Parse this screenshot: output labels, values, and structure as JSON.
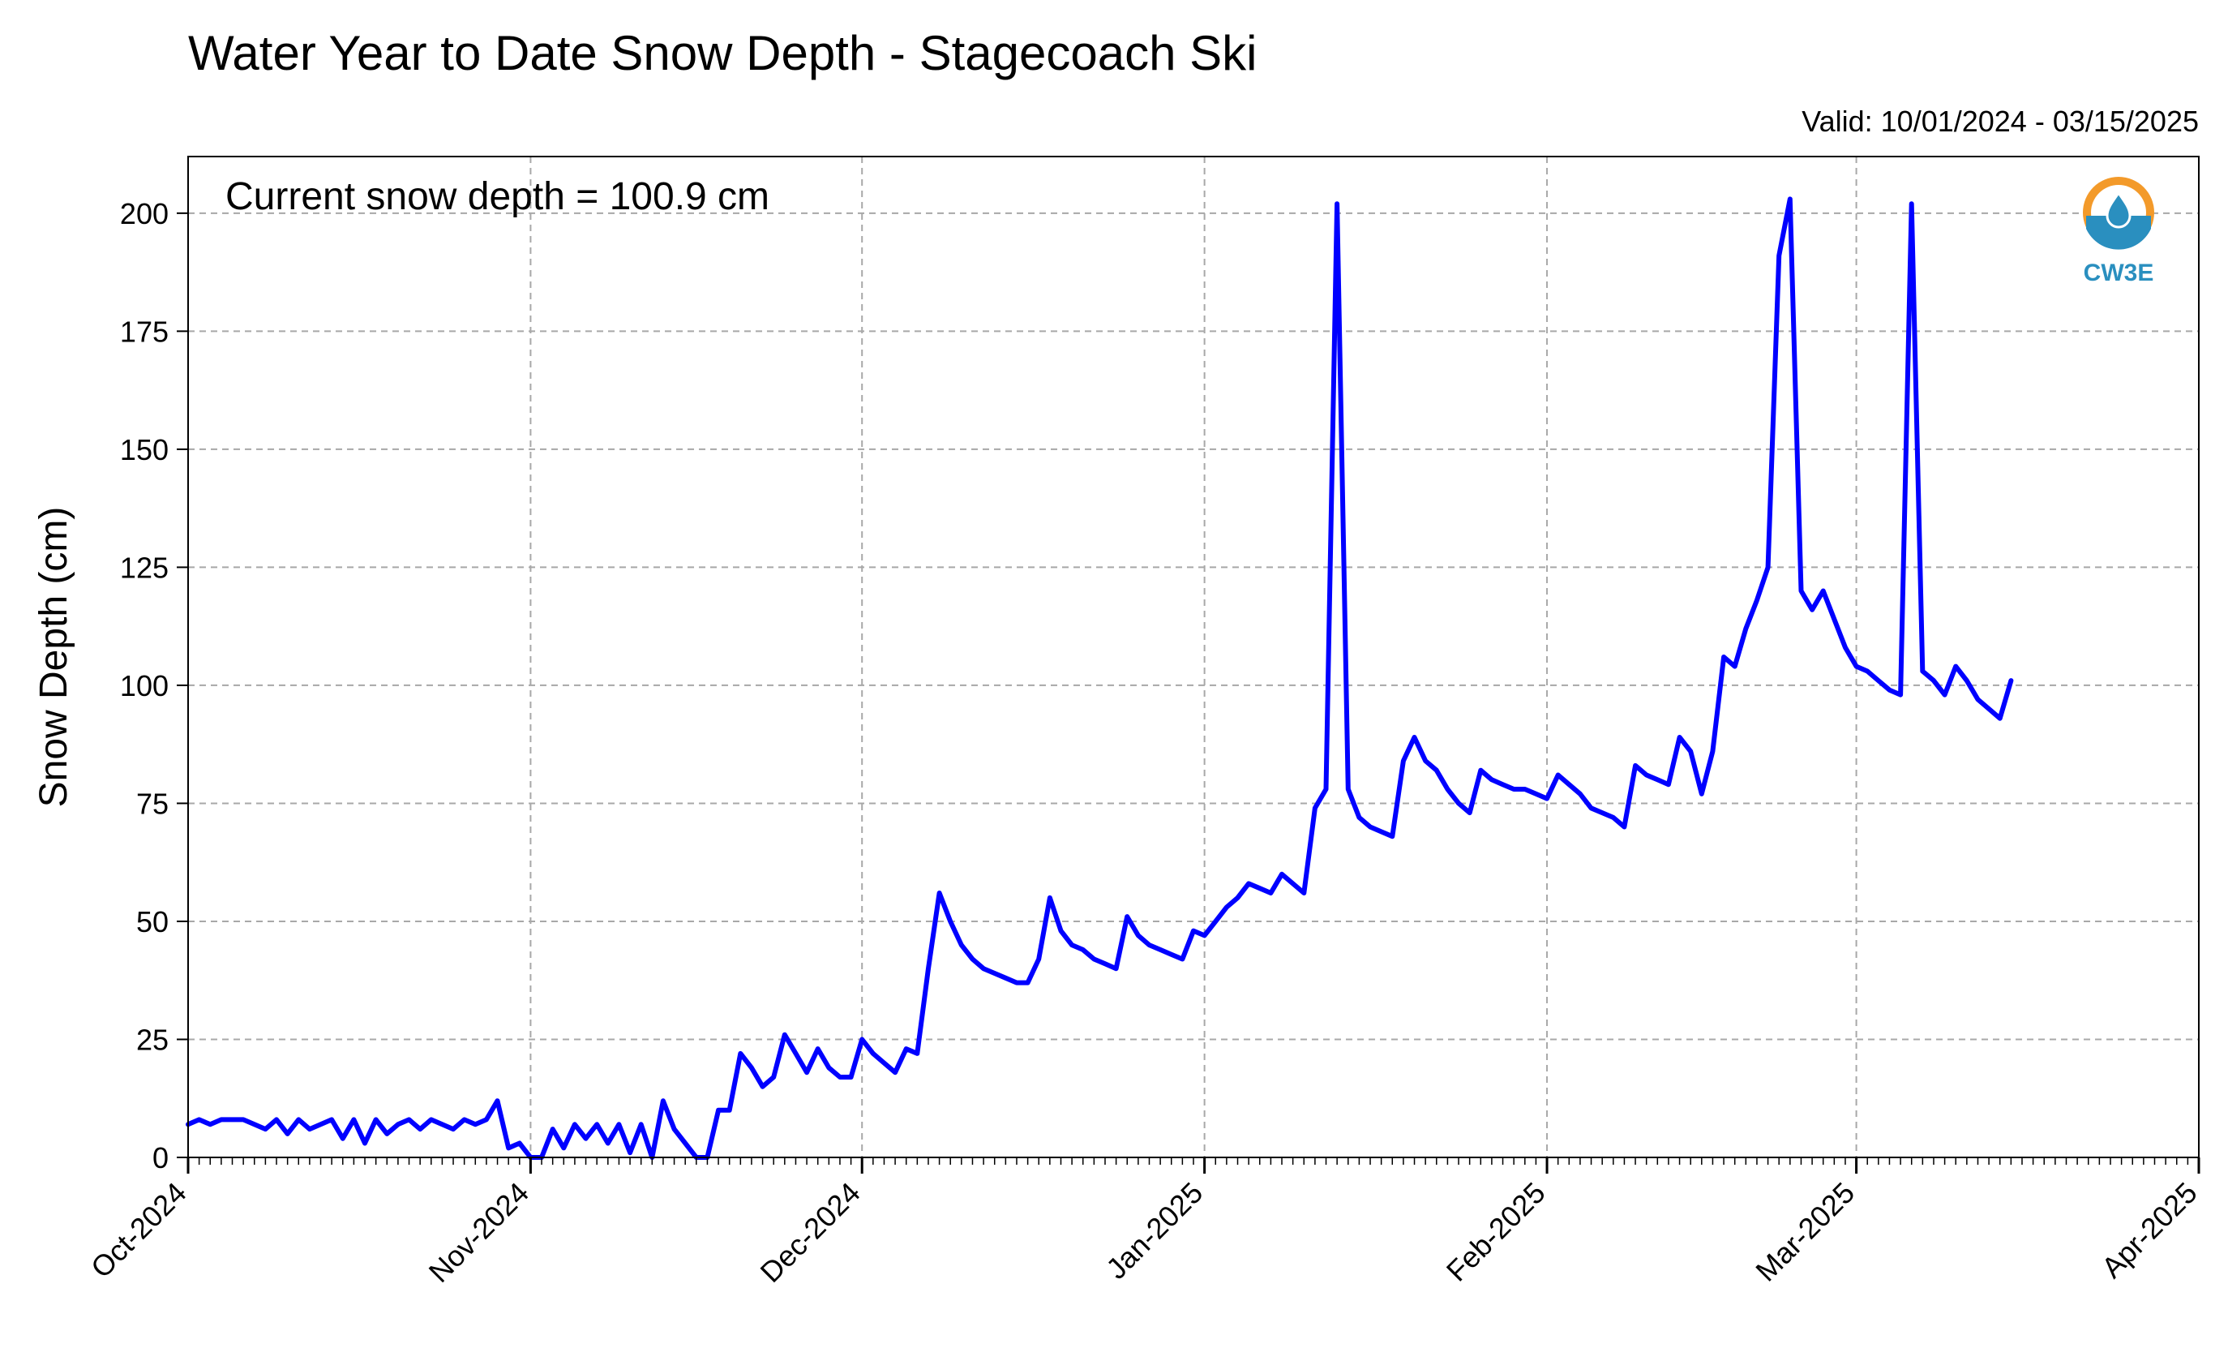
{
  "chart_data": {
    "type": "line",
    "title": "Water Year to Date Snow Depth - Stagecoach Ski",
    "subtitle": "Valid: 10/01/2024 - 03/15/2025",
    "annotation": "Current snow depth = 100.9 cm",
    "xlabel": "",
    "ylabel": "Snow Depth (cm)",
    "xlim": [
      "2024-10-01",
      "2025-04-01"
    ],
    "ylim": [
      0,
      212
    ],
    "x_ticks": [
      {
        "date": "2024-10-01",
        "label": "Oct-2024"
      },
      {
        "date": "2024-11-01",
        "label": "Nov-2024"
      },
      {
        "date": "2024-12-01",
        "label": "Dec-2024"
      },
      {
        "date": "2025-01-01",
        "label": "Jan-2025"
      },
      {
        "date": "2025-02-01",
        "label": "Feb-2025"
      },
      {
        "date": "2025-03-01",
        "label": "Mar-2025"
      },
      {
        "date": "2025-04-01",
        "label": "Apr-2025"
      }
    ],
    "y_ticks": [
      {
        "value": 0,
        "label": "0"
      },
      {
        "value": 25,
        "label": "25"
      },
      {
        "value": 50,
        "label": "50"
      },
      {
        "value": 75,
        "label": "75"
      },
      {
        "value": 100,
        "label": "100"
      },
      {
        "value": 125,
        "label": "125"
      },
      {
        "value": 150,
        "label": "150"
      },
      {
        "value": 175,
        "label": "175"
      },
      {
        "value": 200,
        "label": "200"
      }
    ],
    "grid": true,
    "line_color": "#0000ff",
    "series": [
      {
        "points": [
          [
            "2024-10-01",
            7
          ],
          [
            "2024-10-02",
            8
          ],
          [
            "2024-10-03",
            7
          ],
          [
            "2024-10-04",
            8
          ],
          [
            "2024-10-05",
            8
          ],
          [
            "2024-10-06",
            8
          ],
          [
            "2024-10-07",
            7
          ],
          [
            "2024-10-08",
            6
          ],
          [
            "2024-10-09",
            8
          ],
          [
            "2024-10-10",
            5
          ],
          [
            "2024-10-11",
            8
          ],
          [
            "2024-10-12",
            6
          ],
          [
            "2024-10-13",
            7
          ],
          [
            "2024-10-14",
            8
          ],
          [
            "2024-10-15",
            4
          ],
          [
            "2024-10-16",
            8
          ],
          [
            "2024-10-17",
            3
          ],
          [
            "2024-10-18",
            8
          ],
          [
            "2024-10-19",
            5
          ],
          [
            "2024-10-20",
            7
          ],
          [
            "2024-10-21",
            8
          ],
          [
            "2024-10-22",
            6
          ],
          [
            "2024-10-23",
            8
          ],
          [
            "2024-10-24",
            7
          ],
          [
            "2024-10-25",
            6
          ],
          [
            "2024-10-26",
            8
          ],
          [
            "2024-10-27",
            7
          ],
          [
            "2024-10-28",
            8
          ],
          [
            "2024-10-29",
            12
          ],
          [
            "2024-10-30",
            2
          ],
          [
            "2024-10-31",
            3
          ],
          [
            "2024-11-01",
            0
          ],
          [
            "2024-11-02",
            0
          ],
          [
            "2024-11-03",
            6
          ],
          [
            "2024-11-04",
            2
          ],
          [
            "2024-11-05",
            7
          ],
          [
            "2024-11-06",
            4
          ],
          [
            "2024-11-07",
            7
          ],
          [
            "2024-11-08",
            3
          ],
          [
            "2024-11-09",
            7
          ],
          [
            "2024-11-10",
            1
          ],
          [
            "2024-11-11",
            7
          ],
          [
            "2024-11-12",
            0
          ],
          [
            "2024-11-13",
            12
          ],
          [
            "2024-11-14",
            6
          ],
          [
            "2024-11-15",
            3
          ],
          [
            "2024-11-16",
            0
          ],
          [
            "2024-11-17",
            0
          ],
          [
            "2024-11-18",
            10
          ],
          [
            "2024-11-19",
            10
          ],
          [
            "2024-11-20",
            22
          ],
          [
            "2024-11-21",
            19
          ],
          [
            "2024-11-22",
            15
          ],
          [
            "2024-11-23",
            17
          ],
          [
            "2024-11-24",
            26
          ],
          [
            "2024-11-25",
            22
          ],
          [
            "2024-11-26",
            18
          ],
          [
            "2024-11-27",
            23
          ],
          [
            "2024-11-28",
            19
          ],
          [
            "2024-11-29",
            17
          ],
          [
            "2024-11-30",
            17
          ],
          [
            "2024-12-01",
            25
          ],
          [
            "2024-12-02",
            22
          ],
          [
            "2024-12-03",
            20
          ],
          [
            "2024-12-04",
            18
          ],
          [
            "2024-12-05",
            23
          ],
          [
            "2024-12-06",
            22
          ],
          [
            "2024-12-07",
            40
          ],
          [
            "2024-12-08",
            56
          ],
          [
            "2024-12-09",
            50
          ],
          [
            "2024-12-10",
            45
          ],
          [
            "2024-12-11",
            42
          ],
          [
            "2024-12-12",
            40
          ],
          [
            "2024-12-13",
            39
          ],
          [
            "2024-12-14",
            38
          ],
          [
            "2024-12-15",
            37
          ],
          [
            "2024-12-16",
            37
          ],
          [
            "2024-12-17",
            42
          ],
          [
            "2024-12-18",
            55
          ],
          [
            "2024-12-19",
            48
          ],
          [
            "2024-12-20",
            45
          ],
          [
            "2024-12-21",
            44
          ],
          [
            "2024-12-22",
            42
          ],
          [
            "2024-12-23",
            41
          ],
          [
            "2024-12-24",
            40
          ],
          [
            "2024-12-25",
            51
          ],
          [
            "2024-12-26",
            47
          ],
          [
            "2024-12-27",
            45
          ],
          [
            "2024-12-28",
            44
          ],
          [
            "2024-12-29",
            43
          ],
          [
            "2024-12-30",
            42
          ],
          [
            "2024-12-31",
            48
          ],
          [
            "2025-01-01",
            47
          ],
          [
            "2025-01-02",
            50
          ],
          [
            "2025-01-03",
            53
          ],
          [
            "2025-01-04",
            55
          ],
          [
            "2025-01-05",
            58
          ],
          [
            "2025-01-06",
            57
          ],
          [
            "2025-01-07",
            56
          ],
          [
            "2025-01-08",
            60
          ],
          [
            "2025-01-09",
            58
          ],
          [
            "2025-01-10",
            56
          ],
          [
            "2025-01-11",
            74
          ],
          [
            "2025-01-12",
            78
          ],
          [
            "2025-01-13",
            202
          ],
          [
            "2025-01-14",
            78
          ],
          [
            "2025-01-15",
            72
          ],
          [
            "2025-01-16",
            70
          ],
          [
            "2025-01-17",
            69
          ],
          [
            "2025-01-18",
            68
          ],
          [
            "2025-01-19",
            84
          ],
          [
            "2025-01-20",
            89
          ],
          [
            "2025-01-21",
            84
          ],
          [
            "2025-01-22",
            82
          ],
          [
            "2025-01-23",
            78
          ],
          [
            "2025-01-24",
            75
          ],
          [
            "2025-01-25",
            73
          ],
          [
            "2025-01-26",
            82
          ],
          [
            "2025-01-27",
            80
          ],
          [
            "2025-01-28",
            79
          ],
          [
            "2025-01-29",
            78
          ],
          [
            "2025-01-30",
            78
          ],
          [
            "2025-01-31",
            77
          ],
          [
            "2025-02-01",
            76
          ],
          [
            "2025-02-02",
            81
          ],
          [
            "2025-02-03",
            79
          ],
          [
            "2025-02-04",
            77
          ],
          [
            "2025-02-05",
            74
          ],
          [
            "2025-02-06",
            73
          ],
          [
            "2025-02-07",
            72
          ],
          [
            "2025-02-08",
            70
          ],
          [
            "2025-02-09",
            83
          ],
          [
            "2025-02-10",
            81
          ],
          [
            "2025-02-11",
            80
          ],
          [
            "2025-02-12",
            79
          ],
          [
            "2025-02-13",
            89
          ],
          [
            "2025-02-14",
            86
          ],
          [
            "2025-02-15",
            77
          ],
          [
            "2025-02-16",
            86
          ],
          [
            "2025-02-17",
            106
          ],
          [
            "2025-02-18",
            104
          ],
          [
            "2025-02-19",
            112
          ],
          [
            "2025-02-20",
            118
          ],
          [
            "2025-02-21",
            125
          ],
          [
            "2025-02-22",
            191
          ],
          [
            "2025-02-23",
            203
          ],
          [
            "2025-02-24",
            120
          ],
          [
            "2025-02-25",
            116
          ],
          [
            "2025-02-26",
            120
          ],
          [
            "2025-02-27",
            114
          ],
          [
            "2025-02-28",
            108
          ],
          [
            "2025-03-01",
            104
          ],
          [
            "2025-03-02",
            103
          ],
          [
            "2025-03-03",
            101
          ],
          [
            "2025-03-04",
            99
          ],
          [
            "2025-03-05",
            98
          ],
          [
            "2025-03-06",
            202
          ],
          [
            "2025-03-07",
            103
          ],
          [
            "2025-03-08",
            101
          ],
          [
            "2025-03-09",
            98
          ],
          [
            "2025-03-10",
            104
          ],
          [
            "2025-03-11",
            101
          ],
          [
            "2025-03-12",
            97
          ],
          [
            "2025-03-13",
            95
          ],
          [
            "2025-03-14",
            93
          ],
          [
            "2025-03-15",
            101
          ]
        ]
      }
    ]
  },
  "logo": {
    "text": "CW3E",
    "primary_color": "#2a8fbf",
    "accent_color": "#f39a2a",
    "icon": "water-drop-icon"
  }
}
